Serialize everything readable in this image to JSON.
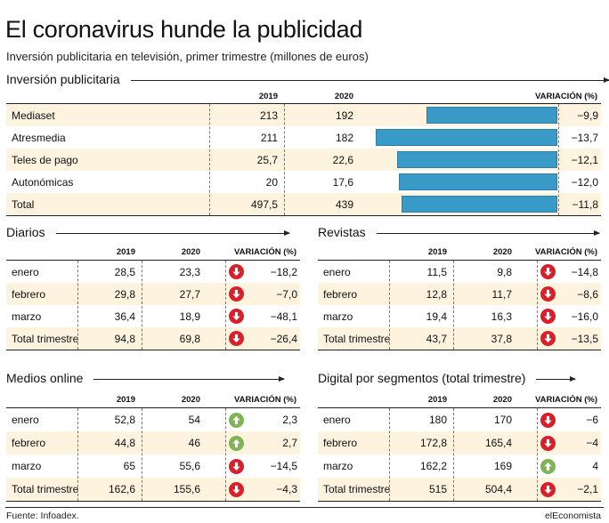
{
  "title": "El coronavirus hunde la publicidad",
  "subtitle": "Inversión publicitaria en televisión, primer trimestre (millones de euros)",
  "source": "Fuente: Infoadex.",
  "brand": "elEconomista",
  "colors": {
    "bar": "#3a9ac7",
    "down": "#d9202a",
    "up": "#7fb454",
    "shade": "#fdf3df"
  },
  "chart_data": [
    {
      "type": "bar",
      "title": "Inversión publicitaria",
      "columns": [
        "2019",
        "2020",
        "VARIACIÓN (%)"
      ],
      "categories": [
        "Mediaset",
        "Atresmedia",
        "Teles de pago",
        "Autonómicas",
        "Total"
      ],
      "values_2019": [
        "213",
        "211",
        "25,7",
        "20",
        "497,5"
      ],
      "values_2020": [
        "192",
        "182",
        "22,6",
        "17,6",
        "439"
      ],
      "variation": [
        -9.9,
        -13.7,
        -12.1,
        -12.0,
        -11.8
      ],
      "variation_labels": [
        "−9,9",
        "−13,7",
        "−12,1",
        "−12,0",
        "−11,8"
      ]
    },
    {
      "type": "table",
      "title": "Diarios",
      "columns": [
        "2019",
        "2020",
        "VARIACIÓN (%)"
      ],
      "rows": [
        {
          "label": "enero",
          "v2019": "28,5",
          "v2020": "23,3",
          "variation": "−18,2",
          "trend": "down"
        },
        {
          "label": "febrero",
          "v2019": "29,8",
          "v2020": "27,7",
          "variation": "−7,0",
          "trend": "down"
        },
        {
          "label": "marzo",
          "v2019": "36,4",
          "v2020": "18,9",
          "variation": "−48,1",
          "trend": "down"
        },
        {
          "label": "Total trimestre",
          "v2019": "94,8",
          "v2020": "69,8",
          "variation": "−26,4",
          "trend": "down"
        }
      ]
    },
    {
      "type": "table",
      "title": "Revistas",
      "columns": [
        "2019",
        "2020",
        "VARIACIÓN (%)"
      ],
      "rows": [
        {
          "label": "enero",
          "v2019": "11,5",
          "v2020": "9,8",
          "variation": "−14,8",
          "trend": "down"
        },
        {
          "label": "febrero",
          "v2019": "12,8",
          "v2020": "11,7",
          "variation": "−8,6",
          "trend": "down"
        },
        {
          "label": "marzo",
          "v2019": "19,4",
          "v2020": "16,3",
          "variation": "−16,0",
          "trend": "down"
        },
        {
          "label": "Total trimestre",
          "v2019": "43,7",
          "v2020": "37,8",
          "variation": "−13,5",
          "trend": "down"
        }
      ]
    },
    {
      "type": "table",
      "title": "Medios online",
      "columns": [
        "2019",
        "2020",
        "VARIACIÓN (%)"
      ],
      "rows": [
        {
          "label": "enero",
          "v2019": "52,8",
          "v2020": "54",
          "variation": "2,3",
          "trend": "up"
        },
        {
          "label": "febrero",
          "v2019": "44,8",
          "v2020": "46",
          "variation": "2,7",
          "trend": "up"
        },
        {
          "label": "marzo",
          "v2019": "65",
          "v2020": "55,6",
          "variation": "−14,5",
          "trend": "down"
        },
        {
          "label": "Total trimestre",
          "v2019": "162,6",
          "v2020": "155,6",
          "variation": "−4,3",
          "trend": "down"
        }
      ]
    },
    {
      "type": "table",
      "title": "Digital por segmentos (total trimestre)",
      "columns": [
        "2019",
        "2020",
        "VARIACIÓN (%)"
      ],
      "rows": [
        {
          "label": "enero",
          "v2019": "180",
          "v2020": "170",
          "variation": "−6",
          "trend": "down"
        },
        {
          "label": "febrero",
          "v2019": "172,8",
          "v2020": "165,4",
          "variation": "−4",
          "trend": "down"
        },
        {
          "label": "marzo",
          "v2019": "162,2",
          "v2020": "169",
          "variation": "4",
          "trend": "up"
        },
        {
          "label": "Total trimestre",
          "v2019": "515",
          "v2020": "504,4",
          "variation": "−2,1",
          "trend": "down"
        }
      ]
    }
  ]
}
